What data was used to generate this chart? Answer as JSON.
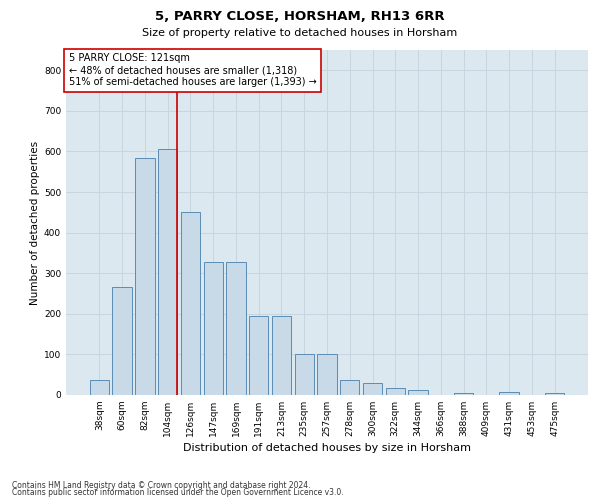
{
  "title": "5, PARRY CLOSE, HORSHAM, RH13 6RR",
  "subtitle": "Size of property relative to detached houses in Horsham",
  "xlabel": "Distribution of detached houses by size in Horsham",
  "ylabel": "Number of detached properties",
  "categories": [
    "38sqm",
    "60sqm",
    "82sqm",
    "104sqm",
    "126sqm",
    "147sqm",
    "169sqm",
    "191sqm",
    "213sqm",
    "235sqm",
    "257sqm",
    "278sqm",
    "300sqm",
    "322sqm",
    "344sqm",
    "366sqm",
    "388sqm",
    "409sqm",
    "431sqm",
    "453sqm",
    "475sqm"
  ],
  "values": [
    37,
    265,
    583,
    605,
    450,
    328,
    328,
    195,
    195,
    100,
    100,
    38,
    30,
    18,
    12,
    0,
    5,
    0,
    8,
    0,
    5
  ],
  "bar_color": "#c8d9e8",
  "bar_edge_color": "#5a8db5",
  "vline_color": "#cc0000",
  "annotation_line1": "5 PARRY CLOSE: 121sqm",
  "annotation_line2": "← 48% of detached houses are smaller (1,318)",
  "annotation_line3": "51% of semi-detached houses are larger (1,393) →",
  "annotation_box_color": "#ffffff",
  "annotation_box_edge": "#cc0000",
  "ylim": [
    0,
    850
  ],
  "yticks": [
    0,
    100,
    200,
    300,
    400,
    500,
    600,
    700,
    800
  ],
  "grid_color": "#c8d4e0",
  "bg_color": "#dce8f0",
  "footer1": "Contains HM Land Registry data © Crown copyright and database right 2024.",
  "footer2": "Contains public sector information licensed under the Open Government Licence v3.0.",
  "title_fontsize": 9.5,
  "subtitle_fontsize": 8,
  "ylabel_fontsize": 7.5,
  "xlabel_fontsize": 8,
  "tick_fontsize": 6.5,
  "annotation_fontsize": 7,
  "footer_fontsize": 5.5
}
